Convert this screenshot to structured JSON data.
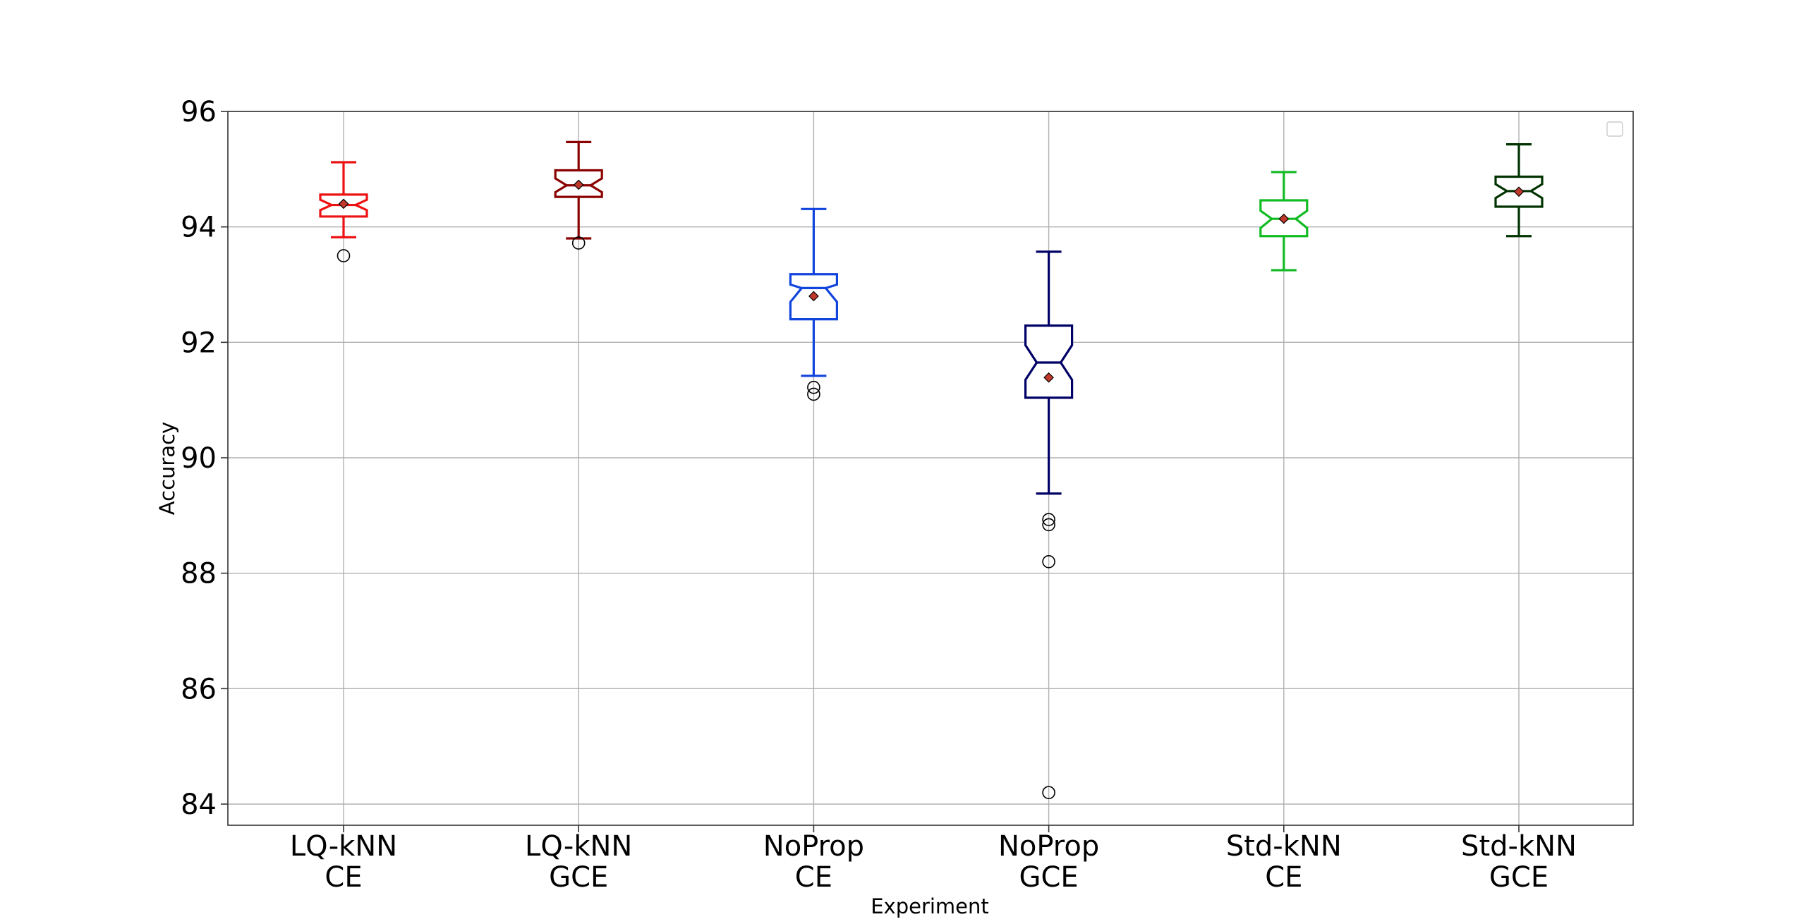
{
  "chart_data": {
    "type": "boxplot",
    "notched": true,
    "xlabel": "Experiment",
    "ylabel": "Accuracy",
    "ylim": [
      83.6,
      96.0
    ],
    "yticks": [
      84,
      86,
      88,
      90,
      92,
      94,
      96
    ],
    "grid": true,
    "legend": "top-right (empty)",
    "mean_marker_color": "#c0392b",
    "categories": [
      {
        "line1": "LQ-kNN",
        "line2": "CE",
        "color": "#ee1111",
        "whisker_low": 93.82,
        "q1": 94.18,
        "median": 94.38,
        "q3": 94.56,
        "whisker_high": 95.12,
        "mean": 94.4,
        "notch_low": 94.29,
        "notch_high": 94.47,
        "outliers": [
          93.5
        ]
      },
      {
        "line1": "LQ-kNN",
        "line2": "GCE",
        "color": "#8b0000",
        "whisker_low": 93.8,
        "q1": 94.52,
        "median": 94.72,
        "q3": 94.98,
        "whisker_high": 95.47,
        "mean": 94.73,
        "notch_low": 94.6,
        "notch_high": 94.84,
        "outliers": [
          93.72
        ]
      },
      {
        "line1": "NoProp",
        "line2": "CE",
        "color": "#1144dd",
        "whisker_low": 91.42,
        "q1": 92.4,
        "median": 92.94,
        "q3": 93.18,
        "whisker_high": 94.31,
        "mean": 92.8,
        "notch_low": 92.7,
        "notch_high": 93.0,
        "outliers": [
          91.22,
          91.1
        ]
      },
      {
        "line1": "NoProp",
        "line2": "GCE",
        "color": "#000066",
        "whisker_low": 89.38,
        "q1": 91.04,
        "median": 91.65,
        "q3": 92.29,
        "whisker_high": 93.57,
        "mean": 91.39,
        "notch_low": 91.35,
        "notch_high": 91.95,
        "outliers": [
          88.93,
          88.84,
          88.2,
          84.2
        ]
      },
      {
        "line1": "Std-kNN",
        "line2": "CE",
        "color": "#11bb22",
        "whisker_low": 93.25,
        "q1": 93.84,
        "median": 94.14,
        "q3": 94.46,
        "whisker_high": 94.95,
        "mean": 94.14,
        "notch_low": 93.98,
        "notch_high": 94.28,
        "outliers": []
      },
      {
        "line1": "Std-kNN",
        "line2": "GCE",
        "color": "#003300",
        "whisker_low": 93.84,
        "q1": 94.35,
        "median": 94.62,
        "q3": 94.87,
        "whisker_high": 95.43,
        "mean": 94.61,
        "notch_low": 94.5,
        "notch_high": 94.74,
        "outliers": []
      }
    ]
  }
}
